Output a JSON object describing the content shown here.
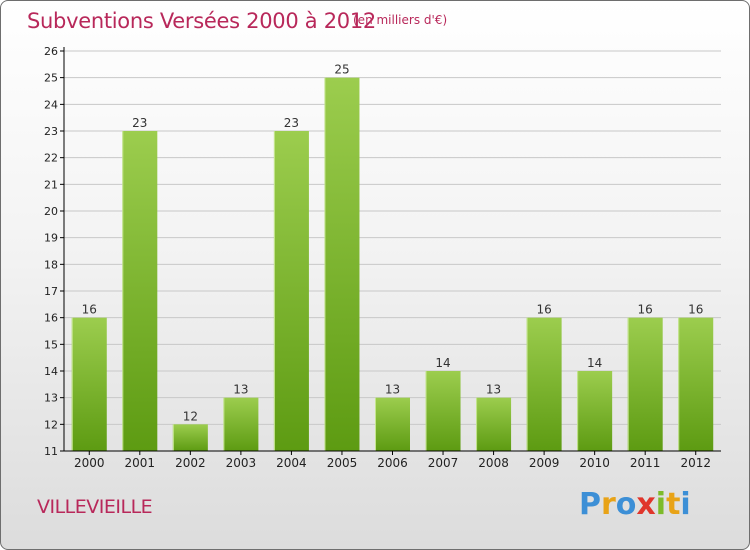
{
  "title": "Subventions Versées 2000 à 2012",
  "subtitle": "(en milliers d'€)",
  "commune": "VILLEVIEILLE",
  "logo": {
    "letters": [
      {
        "char": "P",
        "color": "#3c8fd6"
      },
      {
        "char": "r",
        "color": "#e8a317"
      },
      {
        "char": "o",
        "color": "#3c8fd6"
      },
      {
        "char": "x",
        "color": "#e0362c"
      },
      {
        "char": "i",
        "color": "#7dbb2a"
      },
      {
        "char": "t",
        "color": "#e8a317"
      },
      {
        "char": "i",
        "color": "#3c8fd6"
      }
    ]
  },
  "colors": {
    "title": "#b8285a",
    "bar_top": "#9ccd4e",
    "bar_bottom": "#5d9b12",
    "grid": "#c8c8c8",
    "axis": "#000000"
  },
  "chart_data": {
    "type": "bar",
    "categories": [
      "2000",
      "2001",
      "2002",
      "2003",
      "2004",
      "2005",
      "2006",
      "2007",
      "2008",
      "2009",
      "2010",
      "2011",
      "2012"
    ],
    "values": [
      16,
      23,
      12,
      13,
      23,
      25,
      13,
      14,
      13,
      16,
      14,
      16,
      16
    ],
    "ylim": [
      11,
      26
    ],
    "yticks": [
      11,
      12,
      13,
      14,
      15,
      16,
      17,
      18,
      19,
      20,
      21,
      22,
      23,
      24,
      25,
      26
    ],
    "title": "Subventions Versées 2000 à 2012",
    "xlabel": "",
    "ylabel": "",
    "grid": true,
    "data_labels": true
  }
}
